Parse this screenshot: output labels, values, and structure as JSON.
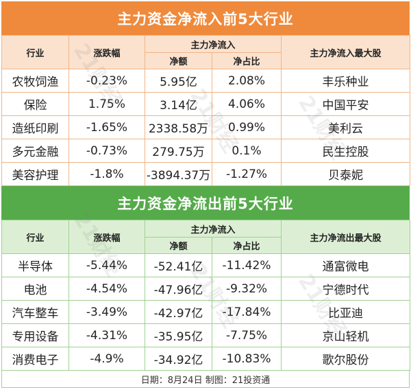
{
  "inflow": {
    "title": "主力资金净流入前5大行业",
    "headers": {
      "industry": "行业",
      "change": "涨跌幅",
      "group": "主力净流入",
      "amount": "净额",
      "ratio": "净占比",
      "stock": "主力净流入最大股"
    },
    "rows": [
      {
        "industry": "农牧饲渔",
        "change": "-0.23%",
        "amount": "5.95亿",
        "ratio": "2.08%",
        "stock": "丰乐种业"
      },
      {
        "industry": "保险",
        "change": "1.75%",
        "amount": "3.14亿",
        "ratio": "4.06%",
        "stock": "中国平安"
      },
      {
        "industry": "造纸印刷",
        "change": "-1.65%",
        "amount": "2338.58万",
        "ratio": "0.99%",
        "stock": "美利云"
      },
      {
        "industry": "多元金融",
        "change": "-0.73%",
        "amount": "279.75万",
        "ratio": "0.1%",
        "stock": "民生控股"
      },
      {
        "industry": "美容护理",
        "change": "-1.8%",
        "amount": "-3894.37万",
        "ratio": "-1.27%",
        "stock": "贝泰妮"
      }
    ]
  },
  "outflow": {
    "title": "主力资金净流出前5大行业",
    "headers": {
      "industry": "行业",
      "change": "涨跌幅",
      "group": "主力净流入",
      "amount": "净额",
      "ratio": "净占比",
      "stock": "主力净流出最大股"
    },
    "rows": [
      {
        "industry": "半导体",
        "change": "-5.44%",
        "amount": "-52.41亿",
        "ratio": "-11.42%",
        "stock": "通富微电"
      },
      {
        "industry": "电池",
        "change": "-4.54%",
        "amount": "-47.96亿",
        "ratio": "-9.32%",
        "stock": "宁德时代"
      },
      {
        "industry": "汽车整车",
        "change": "-3.49%",
        "amount": "-42.97亿",
        "ratio": "-17.84%",
        "stock": "比亚迪"
      },
      {
        "industry": "专用设备",
        "change": "-4.31%",
        "amount": "-35.95亿",
        "ratio": "-7.75%",
        "stock": "京山轻机"
      },
      {
        "industry": "消费电子",
        "change": "-4.9%",
        "amount": "-34.92亿",
        "ratio": "-10.83%",
        "stock": "歌尔股份"
      }
    ]
  },
  "footer": "日期：8月24日  制图：21投资通",
  "watermark": "21财经"
}
